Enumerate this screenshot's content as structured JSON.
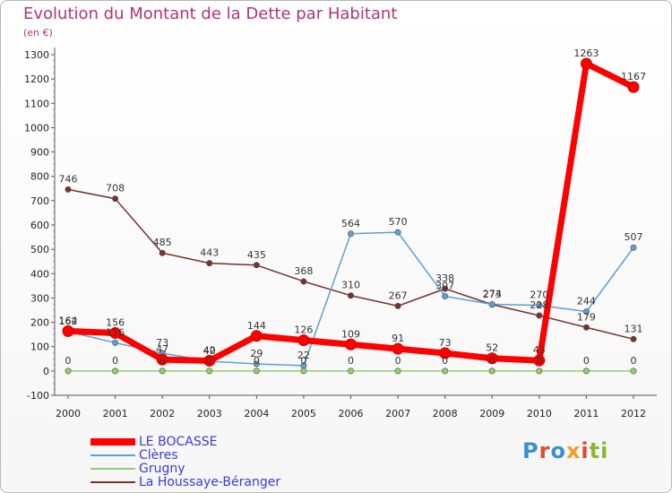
{
  "title": "Evolution du Montant de la Dette par Habitant",
  "unit": "(en €)",
  "logo": "Proxiti",
  "colors": {
    "title": "#b23473",
    "legend_text": "#3b3bd6",
    "axis": "#555555",
    "grid": "#dddddd",
    "logo_letters": [
      "#3e8fd0",
      "#e04a2f",
      "#3e8fd0",
      "#f0a020",
      "#e04a2f",
      "#8ab833",
      "#8ab833"
    ]
  },
  "chart_data": {
    "type": "line",
    "title": "Evolution du Montant de la Dette par Habitant",
    "ylabel": "(en €)",
    "xlabel": "",
    "x": [
      "2000",
      "2001",
      "2002",
      "2003",
      "2004",
      "2005",
      "2006",
      "2007",
      "2008",
      "2009",
      "2010",
      "2011",
      "2012"
    ],
    "ylim": [
      -100,
      1300
    ],
    "yticks": [
      "-100",
      "0",
      "100",
      "200",
      "300",
      "400",
      "500",
      "600",
      "700",
      "800",
      "900",
      "1000",
      "1100",
      "1200",
      "1300"
    ],
    "grid": false,
    "legend_position": "bottom-left",
    "series": [
      {
        "name": "LE BOCASSE",
        "color": "#ff0000",
        "values": [
          164,
          156,
          47,
          42,
          144,
          126,
          109,
          91,
          73,
          52,
          43,
          1263,
          1167
        ],
        "labels": [
          "164",
          "156",
          "47",
          "42",
          "144",
          "126",
          "109",
          "91",
          "73",
          "52",
          "43",
          "1263",
          "1167"
        ]
      },
      {
        "name": "Clères",
        "color": "#5f9fd3",
        "values": [
          162,
          116,
          73,
          40,
          29,
          22,
          564,
          570,
          307,
          274,
          270,
          244,
          507
        ],
        "labels": [
          "162",
          "116",
          "73",
          "40",
          "29",
          "22",
          "564",
          "570",
          "307",
          "274",
          "270",
          "244",
          "507"
        ]
      },
      {
        "name": "Grugny",
        "color": "#8fd16b",
        "values": [
          0,
          0,
          0,
          0,
          0,
          0,
          0,
          0,
          0,
          0,
          0,
          0,
          0
        ],
        "labels": [
          "0",
          "0",
          "0",
          "0",
          "0",
          "0",
          "0",
          "0",
          "0",
          "0",
          "0",
          "0",
          "0"
        ]
      },
      {
        "name": "La Houssaye-Béranger",
        "color": "#7a2f2f",
        "values": [
          746,
          708,
          485,
          443,
          435,
          368,
          310,
          267,
          338,
          273,
          228,
          179,
          131
        ],
        "labels": [
          "746",
          "708",
          "485",
          "443",
          "435",
          "368",
          "310",
          "267",
          "338",
          "273",
          "228",
          "179",
          "131"
        ]
      }
    ]
  }
}
